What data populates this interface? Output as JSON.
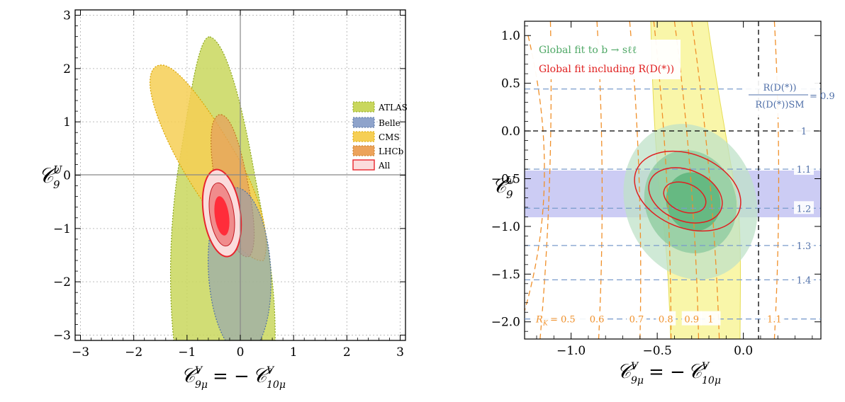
{
  "chart_data": [
    {
      "type": "contour",
      "xlabel": "C9μV = −C10μV",
      "ylabel": "C9U",
      "xlim": [
        -3.1,
        3.1
      ],
      "ylim": [
        -3.1,
        3.1
      ],
      "xticks": [
        -3,
        -2,
        -1,
        0,
        1,
        2,
        3
      ],
      "yticks": [
        -3,
        -2,
        -1,
        0,
        1,
        2,
        3
      ],
      "xtick_labels": [
        "−3",
        "−2",
        "−1",
        "0",
        "1",
        "2",
        "3"
      ],
      "ytick_labels": [
        "−3",
        "−2",
        "−1",
        "0",
        "1",
        "2",
        "3"
      ],
      "grid": true,
      "legend_position": "right",
      "series": [
        {
          "name": "ATLAS",
          "color": "#c6d65a",
          "center": [
            -0.45,
            -0.35
          ],
          "shape": "elongated ellipse",
          "x_extent": [
            -1.2,
            0.5
          ],
          "y_extent": [
            -3.1,
            2.6
          ]
        },
        {
          "name": "Belle",
          "color": "#7f98c4",
          "center": [
            -0.05,
            -1.8
          ],
          "shape": "ellipse",
          "x_extent": [
            -0.65,
            0.45
          ],
          "y_extent": [
            -3.1,
            -0.5
          ]
        },
        {
          "name": "CMS",
          "color": "#f6cf55",
          "center": [
            -0.5,
            0.3
          ],
          "shape": "elongated ellipse",
          "x_extent": [
            -1.4,
            0.1
          ],
          "y_extent": [
            -1.6,
            2.1
          ]
        },
        {
          "name": "LHCb",
          "color": "#eca35b",
          "center": [
            -0.35,
            -0.2
          ],
          "shape": "elongated ellipse",
          "x_extent": [
            -0.8,
            0.15
          ],
          "y_extent": [
            -1.55,
            1.15
          ]
        },
        {
          "name": "All",
          "color": "#e8242c",
          "center": [
            -0.38,
            -0.72
          ],
          "contours_sigma": [
            1,
            2,
            3
          ],
          "x_extent": [
            -0.7,
            -0.03
          ],
          "y_extent": [
            -1.5,
            0.05
          ]
        }
      ]
    },
    {
      "type": "contour",
      "xlabel": "C9μV = −C10μV",
      "ylabel": "C9U",
      "xlim": [
        -1.27,
        0.45
      ],
      "ylim": [
        -2.18,
        1.15
      ],
      "xticks": [
        -1.0,
        -0.5,
        0.0
      ],
      "yticks": [
        -2.0,
        -1.5,
        -1.0,
        -0.5,
        0.0,
        0.5,
        1.0
      ],
      "xtick_labels": [
        "−1.0",
        "−0.5",
        "0.0"
      ],
      "ytick_labels": [
        "−2.0",
        "−1.5",
        "−1.0",
        "−0.5",
        "0.0",
        "0.5",
        "1.0"
      ],
      "legend": [
        "Global fit to b → sℓℓ",
        "Global fit including R(D(*))"
      ],
      "legend_colors": [
        "#4fa866",
        "#e02020"
      ],
      "global_fit_center": [
        -0.35,
        -0.73
      ],
      "rd_band": {
        "y_range": [
          -0.88,
          -0.42
        ],
        "color": "#c7c7f3"
      },
      "rk_band": {
        "color": "#f8f49a",
        "note": "yellow band of R_K"
      },
      "rk_contours": [
        {
          "label": "0.5",
          "value": 0.5
        },
        {
          "label": "0.6",
          "value": 0.6
        },
        {
          "label": "0.7",
          "value": 0.7
        },
        {
          "label": "0.8",
          "value": 0.8
        },
        {
          "label": "0.9",
          "value": 0.9
        },
        {
          "label": "1",
          "value": 1.0
        },
        {
          "label": "1.1",
          "value": 1.1
        }
      ],
      "rk_prefix": "R_K =",
      "rd_ratio_lines": [
        {
          "label": "0.9",
          "y": 0.44
        },
        {
          "label": "1",
          "y": 0.0
        },
        {
          "label": "1.1",
          "y": -0.4
        },
        {
          "label": "1.2",
          "y": -0.81
        },
        {
          "label": "1.3",
          "y": -1.2
        },
        {
          "label": "1.4",
          "y": -1.56
        },
        {
          "label": "",
          "y": -1.97
        }
      ],
      "rd_ratio_label": "R(D(*)) / R(D(*))SM = 0.9"
    }
  ],
  "left": {
    "ytick_labels": [
      "3",
      "2",
      "1",
      "0",
      "−1",
      "−2",
      "−3"
    ],
    "xtick_labels": [
      "−3",
      "−2",
      "−1",
      "0",
      "1",
      "2",
      "3"
    ],
    "ylabel_main": "𝒞",
    "ylabel_sup": "U",
    "ylabel_sub": "9",
    "xlabel_main": "𝒞",
    "xlabel_sup": "V",
    "xlabel_sub": "9μ",
    "xlabel_eq": " = −",
    "xlabel_main2": "𝒞",
    "xlabel_sup2": "V",
    "xlabel_sub2": "10μ",
    "legend": [
      "ATLAS",
      "Belle",
      "CMS",
      "LHCb",
      "All"
    ]
  },
  "right": {
    "ytick_labels": [
      "1.0",
      "0.5",
      "0.0",
      "−0.5",
      "−1.0",
      "−1.5",
      "−2.0"
    ],
    "xtick_labels": [
      "−1.0",
      "−0.5",
      "0.0"
    ],
    "legend_1": "Global fit to b → sℓℓ",
    "legend_2": "Global fit including R(D(*))",
    "ratio_num": "R(D(*))",
    "ratio_den": "R(D(*))SM",
    "ratio_eq": "= 0.9",
    "rd_labels": [
      "1",
      "1.1",
      "1.2",
      "1.3",
      "1.4"
    ],
    "rk_prefix": "R",
    "rk_sub": "K",
    "rk_eq": "= 0.5",
    "rk_labels": [
      "0.6",
      "0.7",
      "0.8",
      "0.9",
      "1",
      "1.1"
    ]
  }
}
